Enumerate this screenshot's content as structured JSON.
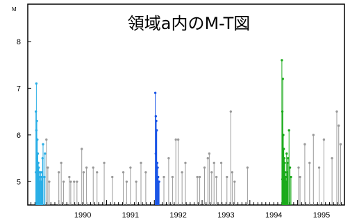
{
  "chart_data": {
    "type": "stem",
    "title": "領域a内のM-T図",
    "ylabel": "M",
    "xlim": [
      1989.35,
      1995.98
    ],
    "ylim": [
      4.5,
      8.8
    ],
    "yticks": [
      5,
      6,
      7,
      8
    ],
    "xtick_labels": [
      "1990",
      "1991",
      "1992",
      "1993",
      "1994",
      "1995"
    ],
    "grid": false,
    "series": [
      {
        "color": "#29aee6",
        "points": [
          [
            1989.53,
            7.1
          ],
          [
            1989.52,
            6.5
          ],
          [
            1989.54,
            6.3
          ],
          [
            1989.53,
            6.1
          ],
          [
            1989.55,
            5.9
          ],
          [
            1989.56,
            5.6
          ],
          [
            1989.54,
            5.5
          ],
          [
            1989.57,
            5.4
          ],
          [
            1989.58,
            5.3
          ],
          [
            1989.52,
            5.2
          ],
          [
            1989.59,
            5.2
          ],
          [
            1989.6,
            5.1
          ],
          [
            1989.55,
            5.0
          ],
          [
            1989.61,
            5.0
          ],
          [
            1989.62,
            5.2
          ],
          [
            1989.63,
            5.0
          ],
          [
            1989.64,
            5.1
          ],
          [
            1989.65,
            5.2
          ],
          [
            1989.66,
            5.5
          ],
          [
            1989.67,
            5.8
          ],
          [
            1989.7,
            5.1
          ],
          [
            1989.71,
            5.6
          ]
        ]
      },
      {
        "color": "#1a55e6",
        "points": [
          [
            1992.02,
            6.9
          ],
          [
            1992.03,
            6.4
          ],
          [
            1992.04,
            6.3
          ],
          [
            1992.05,
            6.1
          ],
          [
            1992.03,
            5.6
          ],
          [
            1992.06,
            5.4
          ],
          [
            1992.07,
            5.3
          ],
          [
            1992.04,
            5.2
          ],
          [
            1992.08,
            5.1
          ],
          [
            1992.05,
            5.0
          ],
          [
            1992.09,
            5.0
          ],
          [
            1992.1,
            5.0
          ]
        ]
      },
      {
        "color": "#1aaa1a",
        "points": [
          [
            1994.67,
            7.6
          ],
          [
            1994.69,
            7.2
          ],
          [
            1994.68,
            6.5
          ],
          [
            1994.7,
            6.0
          ],
          [
            1994.71,
            5.7
          ],
          [
            1994.72,
            5.5
          ],
          [
            1994.73,
            5.4
          ],
          [
            1994.7,
            5.3
          ],
          [
            1994.74,
            5.2
          ],
          [
            1994.75,
            5.1
          ],
          [
            1994.72,
            5.0
          ],
          [
            1994.76,
            5.0
          ],
          [
            1994.78,
            5.2
          ],
          [
            1994.8,
            5.5
          ],
          [
            1994.82,
            6.1
          ],
          [
            1994.84,
            5.3
          ],
          [
            1994.86,
            5.1
          ],
          [
            1994.68,
            5.05
          ],
          [
            1994.77,
            5.6
          ],
          [
            1994.79,
            5.4
          ]
        ]
      },
      {
        "color": "#9a9a9a",
        "points": [
          [
            1989.74,
            5.9
          ],
          [
            1989.77,
            5.3
          ],
          [
            1989.8,
            5.0
          ],
          [
            1990.0,
            5.2
          ],
          [
            1990.05,
            5.4
          ],
          [
            1990.1,
            5.0
          ],
          [
            1990.22,
            5.1
          ],
          [
            1990.25,
            5.0
          ],
          [
            1990.32,
            5.0
          ],
          [
            1990.38,
            5.0
          ],
          [
            1990.48,
            5.7
          ],
          [
            1990.52,
            5.2
          ],
          [
            1990.58,
            5.3
          ],
          [
            1990.72,
            5.3
          ],
          [
            1990.8,
            5.2
          ],
          [
            1990.95,
            5.4
          ],
          [
            1991.12,
            5.1
          ],
          [
            1991.35,
            5.2
          ],
          [
            1991.42,
            5.0
          ],
          [
            1991.5,
            5.3
          ],
          [
            1991.62,
            5.0
          ],
          [
            1991.72,
            5.4
          ],
          [
            1991.82,
            5.2
          ],
          [
            1992.2,
            5.1
          ],
          [
            1992.3,
            5.5
          ],
          [
            1992.38,
            5.1
          ],
          [
            1992.45,
            5.9
          ],
          [
            1992.5,
            5.9
          ],
          [
            1992.58,
            5.2
          ],
          [
            1992.65,
            5.4
          ],
          [
            1992.9,
            5.1
          ],
          [
            1992.95,
            5.1
          ],
          [
            1993.05,
            5.3
          ],
          [
            1993.12,
            5.5
          ],
          [
            1993.15,
            5.6
          ],
          [
            1993.2,
            5.2
          ],
          [
            1993.25,
            5.4
          ],
          [
            1993.3,
            5.1
          ],
          [
            1993.4,
            5.4
          ],
          [
            1993.52,
            5.1
          ],
          [
            1993.6,
            6.5
          ],
          [
            1993.63,
            5.2
          ],
          [
            1993.68,
            5.0
          ],
          [
            1993.95,
            5.3
          ],
          [
            1995.02,
            5.3
          ],
          [
            1995.05,
            5.1
          ],
          [
            1995.15,
            5.8
          ],
          [
            1995.25,
            5.4
          ],
          [
            1995.33,
            6.0
          ],
          [
            1995.45,
            5.3
          ],
          [
            1995.55,
            5.9
          ],
          [
            1995.72,
            5.5
          ],
          [
            1995.82,
            6.5
          ],
          [
            1995.86,
            6.2
          ],
          [
            1995.9,
            5.8
          ]
        ]
      }
    ]
  }
}
